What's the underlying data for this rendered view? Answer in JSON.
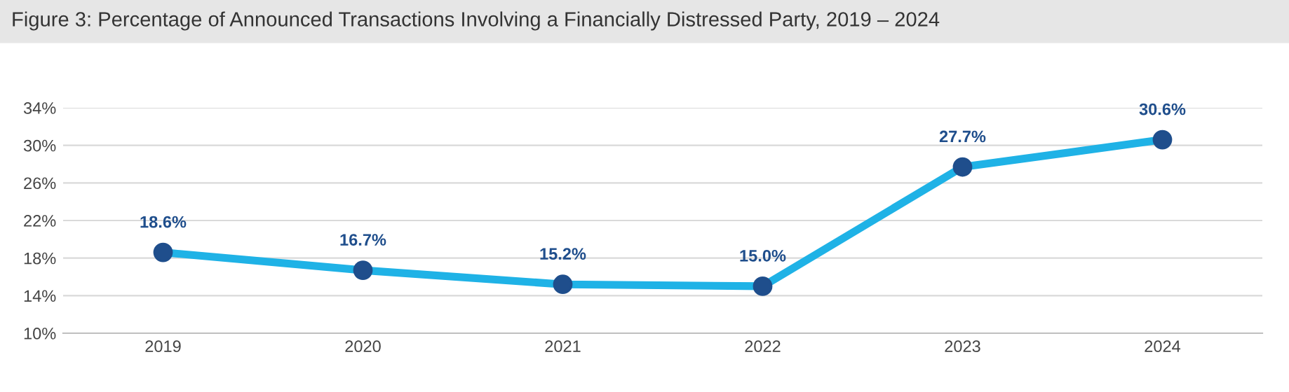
{
  "chart_data": {
    "type": "line",
    "title": "Figure 3: Percentage of Announced Transactions Involving a Financially Distressed Party, 2019 – 2024",
    "categories": [
      "2019",
      "2020",
      "2021",
      "2022",
      "2023",
      "2024"
    ],
    "series": [
      {
        "color": "#1fb2e6",
        "values": [
          18.6,
          16.7,
          15.2,
          15.0,
          27.7,
          30.6
        ],
        "value_labels": [
          "18.6%",
          "16.7%",
          "15.2%",
          "15.0%",
          "27.7%",
          "30.6%"
        ]
      }
    ],
    "ylim": [
      10,
      34
    ],
    "yticks": [
      {
        "value": 10,
        "label": "10%"
      },
      {
        "value": 14,
        "label": "14%"
      },
      {
        "value": 18,
        "label": "18%"
      },
      {
        "value": 22,
        "label": "22%"
      },
      {
        "value": 26,
        "label": "26%"
      },
      {
        "value": 30,
        "label": "30%"
      },
      {
        "value": 34,
        "label": "34%"
      }
    ],
    "grid": "y",
    "marker": "circle",
    "line_style": "solid",
    "legend": false
  }
}
